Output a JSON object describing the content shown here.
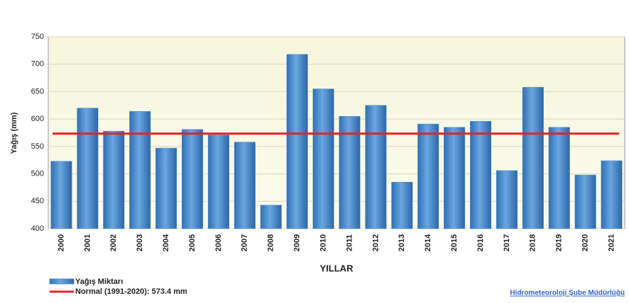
{
  "chart_data": {
    "type": "bar",
    "categories": [
      "2000",
      "2001",
      "2002",
      "2003",
      "2004",
      "2005",
      "2006",
      "2007",
      "2008",
      "2009",
      "2010",
      "2011",
      "2012",
      "2013",
      "2014",
      "2015",
      "2016",
      "2017",
      "2018",
      "2019",
      "2020",
      "2021"
    ],
    "series": [
      {
        "name": "Yağış Miktarı",
        "color": "#4f8fd0",
        "values": [
          523,
          620,
          578,
          614,
          547,
          581,
          571,
          558,
          443,
          718,
          655,
          605,
          625,
          485,
          591,
          585,
          596,
          506,
          658,
          585,
          498,
          524
        ]
      }
    ],
    "reference_line": {
      "name": "Normal (1991-2020): 573.4 mm",
      "value": 573.4,
      "color": "#e8202a"
    },
    "ylabel": "Yağış (mm)",
    "xlabel": "YILLAR",
    "ylim": [
      400,
      750
    ],
    "yticks": [
      400,
      450,
      500,
      550,
      600,
      650,
      700,
      750
    ],
    "grid": true,
    "footer": "Hidrometeoroloji Şube Müdürlüğü"
  }
}
